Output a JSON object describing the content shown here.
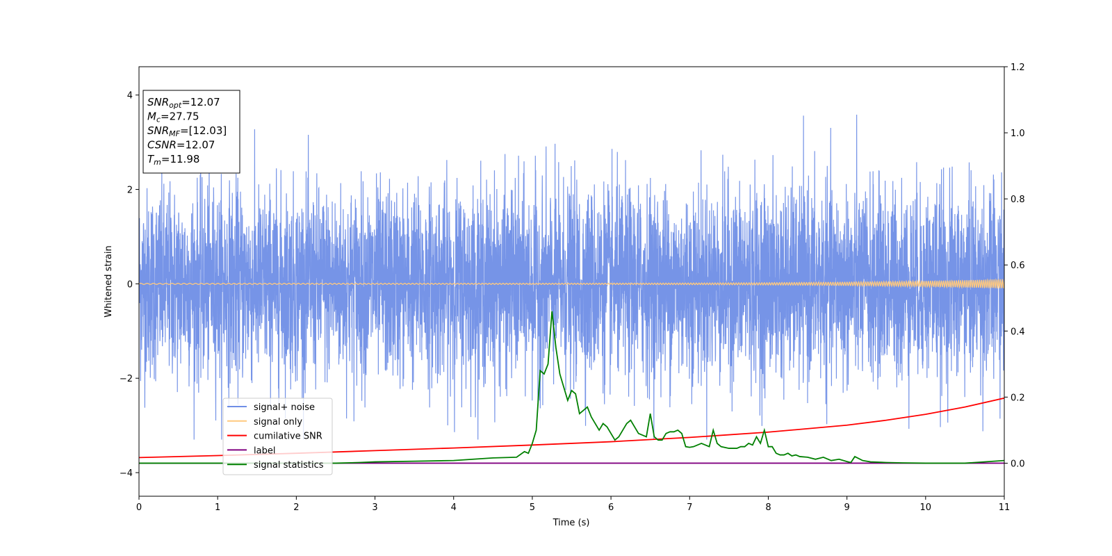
{
  "chart_data": {
    "type": "line",
    "xlabel": "Time (s)",
    "ylabel": "Whitened strain",
    "xlim": [
      0,
      11
    ],
    "ylim": [
      -4.5,
      4.6
    ],
    "y2lim": [
      -0.1,
      1.2
    ],
    "x_ticks": [
      0,
      1,
      2,
      3,
      4,
      5,
      6,
      7,
      8,
      9,
      10,
      11
    ],
    "y_ticks": [
      -4,
      -2,
      0,
      2,
      4
    ],
    "y_tick_labels": [
      "−4",
      "−2",
      "0",
      "2",
      "4"
    ],
    "y2_ticks": [
      0.0,
      0.2,
      0.4,
      0.6,
      0.8,
      1.0,
      1.2
    ],
    "y2_tick_labels": [
      "0.0",
      "0.2",
      "0.4",
      "0.6",
      "0.8",
      "1.0",
      "1.2"
    ],
    "legend_position": "lower-left",
    "annotation": {
      "lines": [
        {
          "sym": "SNR",
          "sub": "opt",
          "value": "=12.07"
        },
        {
          "sym": "M",
          "sub": "c",
          "value": "=27.75"
        },
        {
          "sym": "SNR",
          "sub": "MF",
          "value": "=[12.03]"
        },
        {
          "sym": "CSNR",
          "sub": "",
          "value": "=12.07"
        },
        {
          "sym": "T",
          "sub": "m",
          "value": "=11.98"
        }
      ]
    },
    "series": [
      {
        "name": "signal+ noise",
        "color": "#6f8ee6",
        "axis": "left",
        "description_kind": "noise",
        "amplitude_sigma": 1.0
      },
      {
        "name": "signal only",
        "color": "#ffc97f",
        "axis": "left",
        "description_kind": "chirp",
        "amplitude_end": 0.1
      },
      {
        "name": "cumilative SNR",
        "color": "#ff0000",
        "axis": "right",
        "x": [
          0,
          1,
          2,
          3,
          4,
          5,
          6,
          7,
          8,
          9,
          9.5,
          10,
          10.5,
          11
        ],
        "y": [
          0.017,
          0.023,
          0.03,
          0.038,
          0.046,
          0.055,
          0.065,
          0.078,
          0.094,
          0.115,
          0.13,
          0.148,
          0.17,
          0.197
        ]
      },
      {
        "name": "label",
        "color": "#800080",
        "axis": "right",
        "x": [
          0,
          11
        ],
        "y": [
          0.0,
          0.0
        ]
      },
      {
        "name": "signal statistics",
        "color": "#008000",
        "axis": "right",
        "x": [
          0,
          0.5,
          1,
          1.5,
          2,
          2.5,
          2.8,
          3,
          3.5,
          4,
          4.5,
          4.8,
          4.9,
          4.95,
          5.0,
          5.05,
          5.1,
          5.15,
          5.2,
          5.25,
          5.3,
          5.35,
          5.4,
          5.45,
          5.5,
          5.55,
          5.6,
          5.65,
          5.7,
          5.75,
          5.8,
          5.85,
          5.9,
          5.95,
          6.0,
          6.05,
          6.1,
          6.15,
          6.2,
          6.25,
          6.3,
          6.35,
          6.4,
          6.45,
          6.5,
          6.55,
          6.6,
          6.65,
          6.7,
          6.75,
          6.8,
          6.85,
          6.9,
          6.95,
          7.0,
          7.05,
          7.1,
          7.15,
          7.2,
          7.25,
          7.3,
          7.35,
          7.4,
          7.5,
          7.6,
          7.65,
          7.7,
          7.75,
          7.8,
          7.85,
          7.9,
          7.95,
          8.0,
          8.05,
          8.1,
          8.15,
          8.2,
          8.25,
          8.3,
          8.35,
          8.4,
          8.5,
          8.6,
          8.7,
          8.8,
          8.9,
          9.0,
          9.05,
          9.1,
          9.2,
          9.3,
          9.5,
          9.7,
          10.0,
          10.5,
          11.0
        ],
        "y": [
          0.0,
          0.0,
          0.0,
          0.0,
          0.0,
          0.0,
          0.002,
          0.004,
          0.006,
          0.008,
          0.016,
          0.018,
          0.035,
          0.03,
          0.06,
          0.1,
          0.28,
          0.27,
          0.3,
          0.46,
          0.35,
          0.27,
          0.23,
          0.19,
          0.22,
          0.21,
          0.15,
          0.16,
          0.17,
          0.14,
          0.12,
          0.1,
          0.12,
          0.11,
          0.09,
          0.07,
          0.08,
          0.1,
          0.12,
          0.13,
          0.11,
          0.09,
          0.085,
          0.08,
          0.15,
          0.08,
          0.07,
          0.07,
          0.09,
          0.095,
          0.095,
          0.1,
          0.09,
          0.05,
          0.048,
          0.05,
          0.055,
          0.06,
          0.055,
          0.05,
          0.1,
          0.06,
          0.05,
          0.045,
          0.045,
          0.05,
          0.05,
          0.06,
          0.055,
          0.08,
          0.06,
          0.1,
          0.05,
          0.05,
          0.03,
          0.025,
          0.025,
          0.03,
          0.022,
          0.025,
          0.02,
          0.018,
          0.012,
          0.018,
          0.008,
          0.012,
          0.005,
          0.002,
          0.02,
          0.008,
          0.004,
          0.002,
          0.001,
          0.0,
          0.0,
          0.008
        ]
      }
    ]
  }
}
